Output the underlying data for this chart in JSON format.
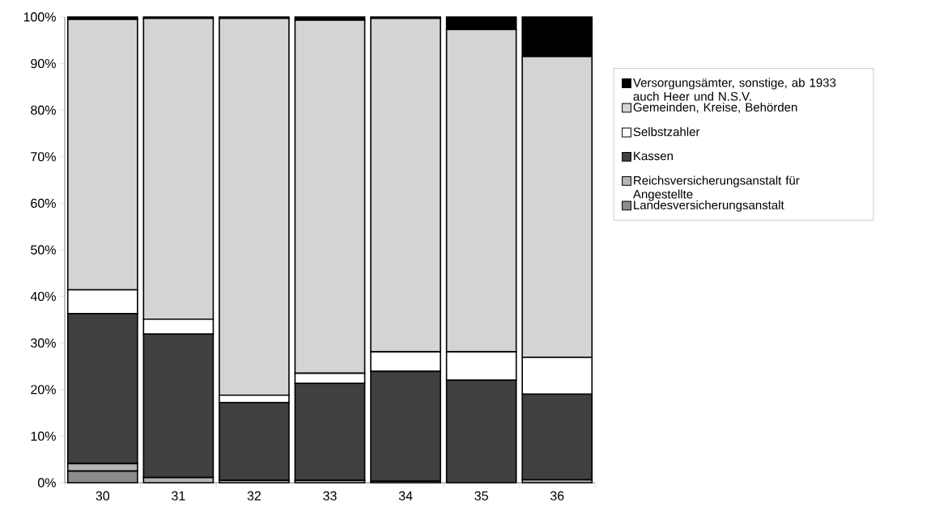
{
  "chart_data": {
    "type": "bar",
    "stacked": true,
    "legend": "right",
    "grid": false,
    "categories": [
      "30",
      "31",
      "32",
      "33",
      "34",
      "35",
      "36"
    ],
    "ylim": [
      0,
      100
    ],
    "yticks": [
      {
        "value": 0,
        "label": "0%"
      },
      {
        "value": 10,
        "label": "10%"
      },
      {
        "value": 20,
        "label": "20%"
      },
      {
        "value": 30,
        "label": "30%"
      },
      {
        "value": 40,
        "label": "40%"
      },
      {
        "value": 50,
        "label": "50%"
      },
      {
        "value": 60,
        "label": "60%"
      },
      {
        "value": 70,
        "label": "70%"
      },
      {
        "value": 80,
        "label": "80%"
      },
      {
        "value": 90,
        "label": "90%"
      },
      {
        "value": 100,
        "label": "100%"
      }
    ],
    "series": [
      {
        "name": "Landesversicherungsanstalt",
        "color": "#8c8c8c",
        "values": [
          2.5,
          0,
          0,
          0,
          0,
          0,
          0
        ]
      },
      {
        "name": "Reichsversicherungsanstalt für Angestellte",
        "color": "#b4b4b4",
        "values": [
          1.6,
          1.1,
          0.5,
          0.5,
          0.3,
          0,
          0.6
        ]
      },
      {
        "name": "Kassen",
        "color": "#404040",
        "values": [
          32.2,
          30.8,
          16.7,
          20.8,
          23.6,
          22.0,
          18.4
        ]
      },
      {
        "name": "Selbstzahler",
        "color": "#ffffff",
        "values": [
          5.1,
          3.2,
          1.6,
          2.2,
          4.2,
          6.1,
          7.9
        ]
      },
      {
        "name": "Gemeinden, Kreise, Behörden",
        "color": "#d4d4d4",
        "values": [
          58.1,
          64.6,
          80.9,
          75.8,
          71.6,
          69.2,
          64.6
        ]
      },
      {
        "name": "Versorgungsämter, sonstige, ab 1933 auch Heer und N.S.V.",
        "color": "#000000",
        "values": [
          0.5,
          0.3,
          0.3,
          0.7,
          0.3,
          2.7,
          8.5
        ]
      }
    ]
  }
}
